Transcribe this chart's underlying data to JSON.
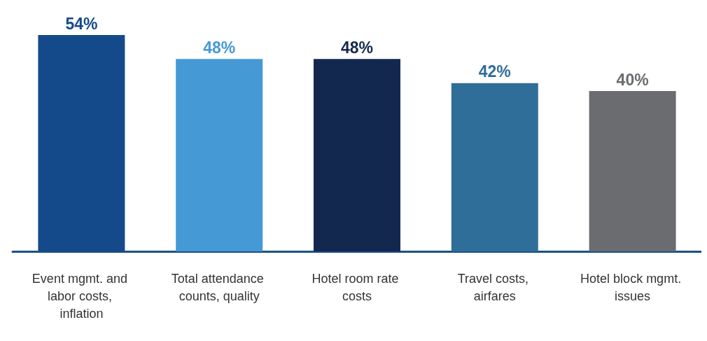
{
  "chart_data": {
    "type": "bar",
    "categories": [
      "Event mgmt. and labor costs, inflation",
      "Total attendance counts, quality",
      "Hotel room rate costs",
      "Travel costs, airfares",
      "Hotel block mgmt. issues"
    ],
    "values": [
      54,
      48,
      48,
      42,
      40
    ],
    "colors": [
      "#154a8a",
      "#4599d5",
      "#13284f",
      "#2f6e98",
      "#6b6c70"
    ],
    "value_labels": [
      "54%",
      "48%",
      "48%",
      "42%",
      "40%"
    ],
    "tick_labels": "x"
  }
}
